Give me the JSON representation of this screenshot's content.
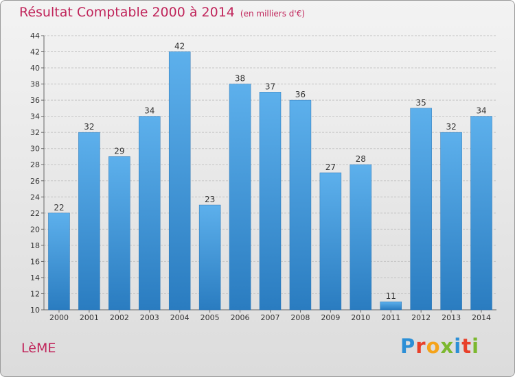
{
  "header": {
    "title": "Résultat Comptable 2000 à 2014",
    "subtitle": "(en milliers d'€)"
  },
  "footer": {
    "commune": "LèME",
    "logo_text": "Proxiti",
    "logo_colors": [
      "#2c8fd6",
      "#e8402a",
      "#f5a31a",
      "#7cb82f",
      "#2c8fd6",
      "#e8402a",
      "#7cb82f"
    ]
  },
  "chart_data": {
    "type": "bar",
    "title": "Résultat Comptable 2000 à 2014",
    "subtitle": "(en milliers d'€)",
    "categories": [
      "2000",
      "2001",
      "2002",
      "2003",
      "2004",
      "2005",
      "2006",
      "2007",
      "2008",
      "2009",
      "2010",
      "2011",
      "2012",
      "2013",
      "2014"
    ],
    "values": [
      22,
      32,
      29,
      34,
      42,
      23,
      38,
      37,
      36,
      27,
      28,
      11,
      35,
      32,
      34
    ],
    "ylim": [
      10,
      44
    ],
    "yticks": [
      10,
      12,
      14,
      16,
      18,
      20,
      22,
      24,
      26,
      28,
      30,
      32,
      34,
      36,
      38,
      40,
      42,
      44
    ],
    "grid": true,
    "bar_color": "#3a93d6"
  }
}
